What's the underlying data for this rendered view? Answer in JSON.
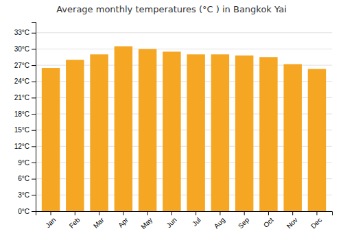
{
  "chart_data": {
    "type": "bar",
    "title": "Average monthly temperatures (°C ) in Bangkok Yai",
    "categories": [
      "Jan",
      "Feb",
      "Mar",
      "Apr",
      "May",
      "Jun",
      "Jul",
      "Aug",
      "Sep",
      "Oct",
      "Nov",
      "Dec"
    ],
    "values": [
      26.5,
      28.0,
      29.0,
      30.5,
      30.0,
      29.5,
      29.0,
      29.0,
      28.8,
      28.5,
      27.2,
      26.3
    ],
    "color": "#F5A623",
    "ylim": [
      0,
      35
    ],
    "yticks": [
      {
        "value": 0,
        "label": "0°C"
      },
      {
        "value": 3,
        "label": "3°C"
      },
      {
        "value": 6,
        "label": "6°C"
      },
      {
        "value": 9,
        "label": "9°C"
      },
      {
        "value": 12,
        "label": "12°C"
      },
      {
        "value": 15,
        "label": "15°C"
      },
      {
        "value": 18,
        "label": "18°C"
      },
      {
        "value": 21,
        "label": "21°C"
      },
      {
        "value": 24,
        "label": "24°C"
      },
      {
        "value": 27,
        "label": "27°C"
      },
      {
        "value": 30,
        "label": "30°C"
      },
      {
        "value": 33,
        "label": "33°C"
      }
    ],
    "grid": true
  }
}
